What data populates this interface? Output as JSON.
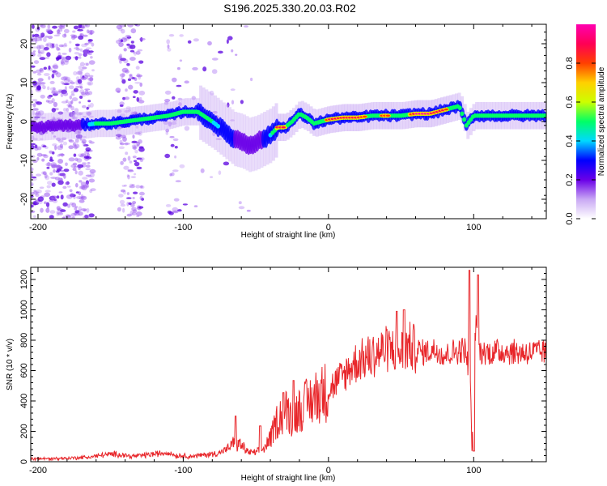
{
  "figure_title": "S196.2025.330.20.03.R02",
  "colors": {
    "snr_line": "#e8262a",
    "band_core": "#e0001a",
    "band_mid": "#22c4ff",
    "band_low": "#5a00e0",
    "speckle": "#9d5cf0"
  },
  "chart_data": [
    {
      "type": "heatmap",
      "title": "",
      "xlabel": "Height of straight line (km)",
      "ylabel": "Frequency (Hz)",
      "xlim": [
        -205,
        150
      ],
      "ylim": [
        -25,
        25
      ],
      "xticks": [
        -200,
        -100,
        0,
        100
      ],
      "xtick_labels": [
        "-200",
        "-100",
        "0",
        "100"
      ],
      "yticks": [
        20,
        10,
        0,
        -10,
        -20
      ],
      "ytick_labels": [
        "20",
        "10",
        "0",
        "-10",
        "-20"
      ],
      "ridge": {
        "x": [
          -200,
          -185,
          -170,
          -160,
          -150,
          -140,
          -130,
          -120,
          -110,
          -100,
          -90,
          -80,
          -70,
          -65,
          -60,
          -55,
          -50,
          -45,
          -40,
          -35,
          -30,
          -25,
          -20,
          -15,
          -10,
          -5,
          0,
          10,
          20,
          30,
          40,
          50,
          60,
          70,
          80,
          85,
          90,
          95,
          100,
          110,
          120,
          130,
          140,
          150
        ],
        "y": [
          -1.5,
          -1,
          -1,
          -0.5,
          -0.5,
          0,
          0.5,
          1,
          1.5,
          2.5,
          2.5,
          0,
          -3,
          -4.5,
          -5,
          -6,
          -5.5,
          -4.5,
          -3.5,
          -1.5,
          -1.5,
          0,
          2,
          1,
          -0.5,
          0,
          0.5,
          1,
          1,
          1.5,
          1.5,
          1.5,
          2,
          2,
          3,
          3.5,
          4,
          -1,
          1.5,
          1.5,
          1.5,
          1.5,
          1.5,
          1.5
        ],
        "strength": [
          0.2,
          0.25,
          0.3,
          0.4,
          0.45,
          0.5,
          0.5,
          0.45,
          0.55,
          0.6,
          0.5,
          0.4,
          0.3,
          0.3,
          0.25,
          0.2,
          0.25,
          0.3,
          0.35,
          0.9,
          0.85,
          0.5,
          0.55,
          0.6,
          0.65,
          0.7,
          0.85,
          0.95,
          0.9,
          0.7,
          0.85,
          0.6,
          0.95,
          0.95,
          0.9,
          0.6,
          0.5,
          0.4,
          0.6,
          0.5,
          0.55,
          0.6,
          0.55,
          0.55
        ]
      },
      "colorbar": {
        "label": "Normalized spectral amplitude",
        "range": [
          0.0,
          1.0
        ],
        "ticks": [
          0.0,
          0.2,
          0.4,
          0.6,
          0.8
        ],
        "tick_labels": [
          "0.0",
          "0.2",
          "0.4",
          "0.6",
          "0.8"
        ],
        "colormap": [
          "#ffffff",
          "#c9a8f4",
          "#6a00e8",
          "#0000ff",
          "#00d9ff",
          "#00ff66",
          "#ccff00",
          "#ffd000",
          "#ff4000",
          "#ff0055",
          "#ff00b0"
        ]
      }
    },
    {
      "type": "line",
      "title": "",
      "xlabel": "Height of straight line (km)",
      "ylabel": "SNR (10 * v/v)",
      "xlim": [
        -205,
        150
      ],
      "ylim": [
        0,
        1280
      ],
      "xticks": [
        -200,
        -100,
        0,
        100
      ],
      "xtick_labels": [
        "-200",
        "-100",
        "0",
        "100"
      ],
      "yticks": [
        0,
        200,
        400,
        600,
        800,
        1000,
        1200
      ],
      "ytick_labels": [
        "0",
        "200",
        "400",
        "600",
        "800",
        "1000",
        "1200"
      ],
      "series": [
        {
          "name": "SNR",
          "x": [
            -205,
            -190,
            -175,
            -165,
            -155,
            -145,
            -135,
            -125,
            -115,
            -110,
            -105,
            -100,
            -95,
            -90,
            -85,
            -80,
            -75,
            -70,
            -65,
            -60,
            -55,
            -50,
            -45,
            -40,
            -35,
            -30,
            -25,
            -20,
            -15,
            -10,
            -5,
            0,
            5,
            10,
            15,
            20,
            25,
            30,
            35,
            40,
            45,
            50,
            55,
            60,
            65,
            70,
            75,
            80,
            85,
            90,
            94,
            97,
            99,
            101,
            104,
            110,
            120,
            130,
            140,
            150
          ],
          "y": [
            20,
            20,
            25,
            30,
            45,
            50,
            35,
            45,
            55,
            60,
            40,
            40,
            35,
            40,
            45,
            50,
            60,
            80,
            120,
            110,
            60,
            60,
            80,
            150,
            280,
            340,
            300,
            350,
            380,
            420,
            450,
            470,
            520,
            560,
            620,
            660,
            680,
            700,
            720,
            740,
            740,
            720,
            760,
            740,
            720,
            730,
            740,
            700,
            720,
            730,
            740,
            600,
            80,
            900,
            720,
            720,
            730,
            720,
            720,
            720
          ],
          "spikes": [
            {
              "x": -64,
              "y": 300
            },
            {
              "x": -47,
              "y": 235
            },
            {
              "x": -31,
              "y": 455
            },
            {
              "x": -24,
              "y": 535
            },
            {
              "x": 47,
              "y": 990
            },
            {
              "x": 52,
              "y": 1000
            },
            {
              "x": 97,
              "y": 1260
            },
            {
              "x": 100,
              "y": 70
            },
            {
              "x": 103,
              "y": 1230
            }
          ]
        }
      ]
    }
  ]
}
